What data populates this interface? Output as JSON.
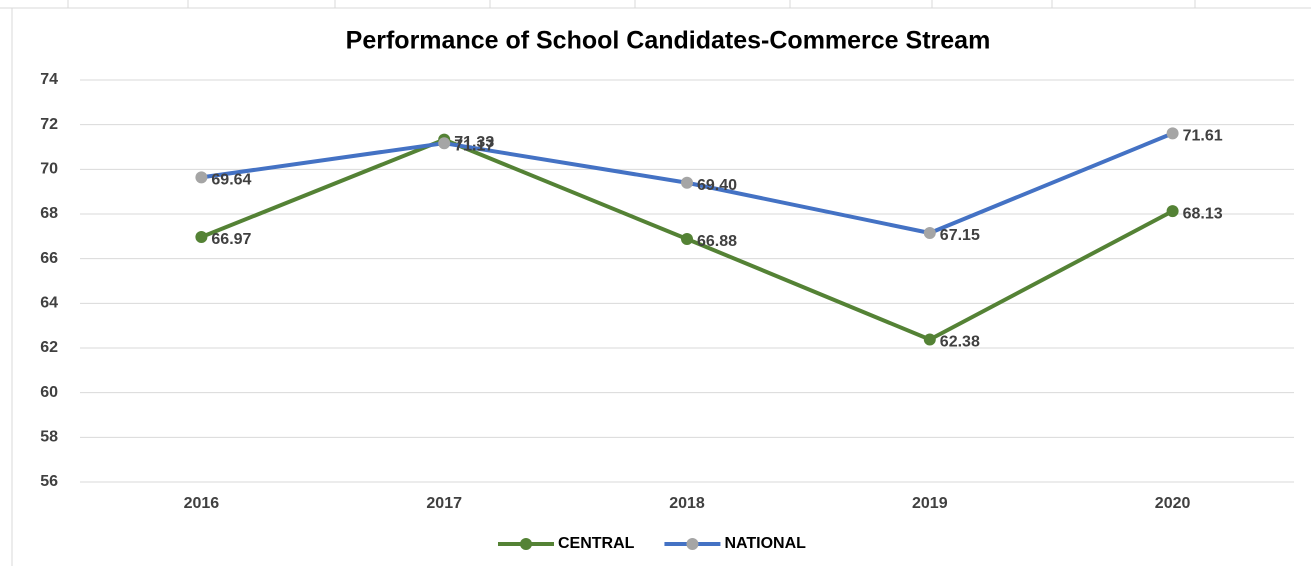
{
  "chart_data": {
    "type": "line",
    "title": "Performance of School Candidates-Commerce Stream",
    "categories": [
      "2016",
      "2017",
      "2018",
      "2019",
      "2020"
    ],
    "series": [
      {
        "name": "CENTRAL",
        "color": "#548235",
        "marker_color": "#548235",
        "values": [
          66.97,
          71.33,
          66.88,
          62.38,
          68.13
        ],
        "value_labels": [
          "66.97",
          "71.33",
          "66.88",
          "62.38",
          "68.13"
        ]
      },
      {
        "name": "NATIONAL",
        "color": "#4472c4",
        "marker_color": "#a5a5a5",
        "values": [
          69.64,
          71.17,
          69.4,
          67.15,
          71.61
        ],
        "value_labels": [
          "69.64",
          "71.17",
          "69.40",
          "67.15",
          "71.61"
        ]
      }
    ],
    "ylim": [
      56,
      74
    ],
    "yticks": [
      56,
      58,
      60,
      62,
      64,
      66,
      68,
      70,
      72,
      74
    ],
    "grid": true,
    "legend": "bottom"
  }
}
